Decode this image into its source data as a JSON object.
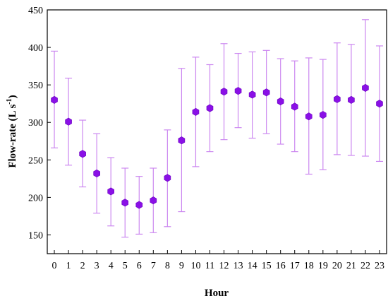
{
  "chart_data": {
    "type": "scatter",
    "title": "",
    "xlabel": "Hour",
    "ylabel_main": "Flow-rate (L s",
    "ylabel_sup": "-1",
    "ylabel_close": ")",
    "xlim": [
      -0.5,
      23.5
    ],
    "ylim": [
      125,
      450
    ],
    "x_ticks": [
      0,
      1,
      2,
      3,
      4,
      5,
      6,
      7,
      8,
      9,
      10,
      11,
      12,
      13,
      14,
      15,
      16,
      17,
      18,
      19,
      20,
      21,
      22,
      23
    ],
    "y_ticks": [
      150,
      200,
      250,
      300,
      350,
      400,
      450
    ],
    "grid": false,
    "marker": "hexagon",
    "color": "#8a10e6",
    "errorbar_color": "#cc88f0",
    "x": [
      0,
      1,
      2,
      3,
      4,
      5,
      6,
      7,
      8,
      9,
      10,
      11,
      12,
      13,
      14,
      15,
      16,
      17,
      18,
      19,
      20,
      21,
      22,
      23
    ],
    "mean": [
      330,
      301,
      258,
      232,
      208,
      193,
      190,
      196,
      226,
      276,
      314,
      319,
      341,
      342,
      337,
      340,
      328,
      321,
      308,
      310,
      331,
      330,
      346,
      325
    ],
    "upper": [
      395,
      359,
      303,
      285,
      253,
      239,
      228,
      239,
      290,
      372,
      387,
      377,
      405,
      392,
      394,
      396,
      385,
      382,
      386,
      384,
      406,
      404,
      437,
      402
    ],
    "lower": [
      266,
      243,
      214,
      179,
      162,
      147,
      151,
      153,
      161,
      181,
      241,
      261,
      277,
      293,
      279,
      285,
      271,
      261,
      231,
      237,
      257,
      256,
      255,
      248
    ]
  }
}
